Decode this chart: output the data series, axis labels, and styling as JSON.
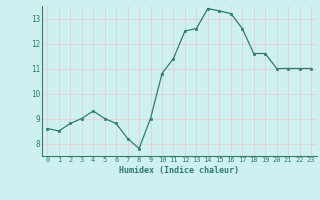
{
  "x": [
    0,
    1,
    2,
    3,
    4,
    5,
    6,
    7,
    8,
    9,
    10,
    11,
    12,
    13,
    14,
    15,
    16,
    17,
    18,
    19,
    20,
    21,
    22,
    23
  ],
  "y": [
    8.6,
    8.5,
    8.8,
    9.0,
    9.3,
    9.0,
    8.8,
    8.2,
    7.8,
    9.0,
    10.8,
    11.4,
    12.5,
    12.6,
    13.4,
    13.3,
    13.2,
    12.6,
    11.6,
    11.6,
    11.0,
    11.0,
    11.0,
    11.0
  ],
  "xlabel": "Humidex (Indice chaleur)",
  "ylim": [
    7.5,
    13.5
  ],
  "xlim": [
    -0.5,
    23.5
  ],
  "yticks": [
    8,
    9,
    10,
    11,
    12,
    13
  ],
  "xtick_labels": [
    "0",
    "1",
    "2",
    "3",
    "4",
    "5",
    "6",
    "7",
    "8",
    "9",
    "10",
    "11",
    "12",
    "13",
    "14",
    "15",
    "16",
    "17",
    "18",
    "19",
    "20",
    "21",
    "22",
    "23"
  ],
  "line_color": "#2e7d6e",
  "marker_color": "#2e7d6e",
  "bg_color": "#cff0f0",
  "grid_color": "#e8c8c8",
  "label_color": "#2e7d6e",
  "tick_color": "#2e7d6e",
  "spine_color": "#2e7d6e"
}
